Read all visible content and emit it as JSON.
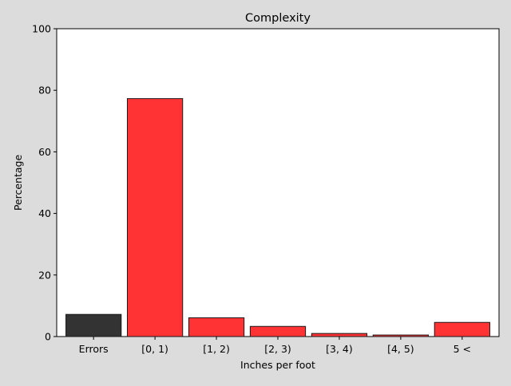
{
  "chart_data": {
    "type": "bar",
    "title": "Complexity",
    "xlabel": "Inches per foot",
    "ylabel": "Percentage",
    "ylim": [
      0,
      100
    ],
    "yticks": [
      0,
      20,
      40,
      60,
      80,
      100
    ],
    "categories": [
      "Errors",
      "[0, 1)",
      "[1, 2)",
      "[2, 3)",
      "[3, 4)",
      "[4, 5)",
      "5 <"
    ],
    "values": [
      7.2,
      77.3,
      6.1,
      3.3,
      1.0,
      0.5,
      4.6
    ],
    "bar_colors": [
      "#333333",
      "#ff3333",
      "#ff3333",
      "#ff3333",
      "#ff3333",
      "#ff3333",
      "#ff3333"
    ],
    "grid": false,
    "legend": "none"
  }
}
